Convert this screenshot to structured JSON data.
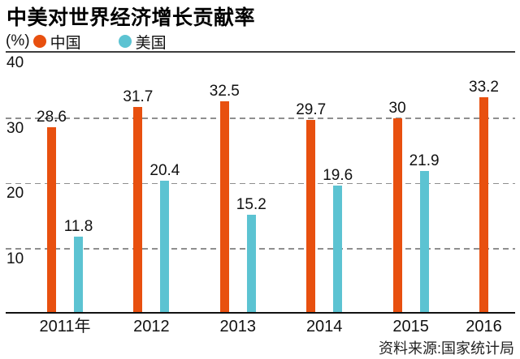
{
  "title": "中美对世界经济增长贡献率",
  "axis_unit": "(%)",
  "source": "资料来源:国家统计局",
  "colors": {
    "china": "#e8500f",
    "usa": "#5cc3d2",
    "grid": "#8f8f8f",
    "top_axis_line": "#3d3d3d",
    "baseline": "#111111",
    "text": "#111111"
  },
  "chart_data": {
    "type": "bar",
    "title": "中美对世界经济增长贡献率",
    "categories": [
      "2011年",
      "2012",
      "2013",
      "2014",
      "2015",
      "2016"
    ],
    "series": [
      {
        "name": "中国",
        "color": "#e8500f",
        "values": [
          28.6,
          31.7,
          32.5,
          29.7,
          30,
          33.2
        ],
        "labels": [
          "28.6",
          "31.7",
          "32.5",
          "29.7",
          "30",
          "33.2"
        ]
      },
      {
        "name": "美国",
        "color": "#5cc3d2",
        "values": [
          11.8,
          20.4,
          15.2,
          19.6,
          21.9,
          null
        ],
        "labels": [
          "11.8",
          "20.4",
          "15.2",
          "19.6",
          "21.9",
          null
        ]
      }
    ],
    "ylabel": "(%)",
    "ylim": [
      0,
      40
    ],
    "yticks": [
      10,
      20,
      30,
      40
    ],
    "grid": "horizontal dashed gray at 10/20/30, solid dark line at 40, solid black baseline at 0",
    "legend_position": "top-left",
    "value_labels_shown": true,
    "source": "资料来源:国家统计局"
  }
}
